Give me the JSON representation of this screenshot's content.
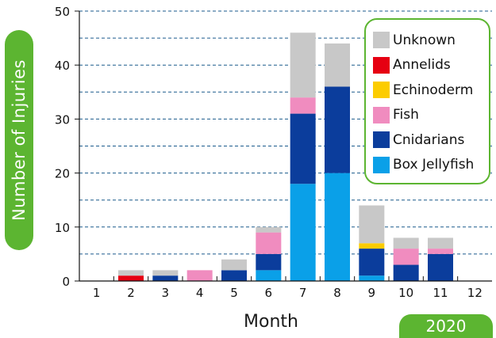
{
  "chart_data": {
    "type": "bar",
    "stacked": true,
    "categories": [
      "1",
      "2",
      "3",
      "4",
      "5",
      "6",
      "7",
      "8",
      "9",
      "10",
      "11",
      "12"
    ],
    "xlabel": "Month",
    "ylabel": "Number of Injuries",
    "ylim": [
      0,
      50
    ],
    "yticks": [
      0,
      10,
      20,
      30,
      40,
      50
    ],
    "grid": true,
    "legend_position": "top-right",
    "year_badge": "2020",
    "series": [
      {
        "name": "Box Jellyfish",
        "color": "#0aa0e8",
        "values": [
          0,
          0,
          0,
          0,
          0,
          2,
          18,
          20,
          1,
          0,
          0,
          0
        ]
      },
      {
        "name": "Cnidarians",
        "color": "#0b3d9c",
        "values": [
          0,
          0,
          1,
          0,
          2,
          3,
          13,
          16,
          5,
          3,
          5,
          0
        ]
      },
      {
        "name": "Fish",
        "color": "#f08cbf",
        "values": [
          0,
          0,
          0,
          2,
          0,
          4,
          3,
          0,
          0,
          3,
          1,
          0
        ]
      },
      {
        "name": "Echinoderm",
        "color": "#fccc00",
        "values": [
          0,
          0,
          0,
          0,
          0,
          0,
          0,
          0,
          1,
          0,
          0,
          0
        ]
      },
      {
        "name": "Annelids",
        "color": "#e60012",
        "values": [
          0,
          1,
          0,
          0,
          0,
          0,
          0,
          0,
          0,
          0,
          0,
          0
        ]
      },
      {
        "name": "Unknown",
        "color": "#c8c8c8",
        "values": [
          0,
          1,
          1,
          0,
          2,
          1,
          12,
          8,
          7,
          2,
          2,
          0
        ]
      }
    ],
    "legend_order": [
      "Unknown",
      "Annelids",
      "Echinoderm",
      "Fish",
      "Cnidarians",
      "Box Jellyfish"
    ]
  }
}
